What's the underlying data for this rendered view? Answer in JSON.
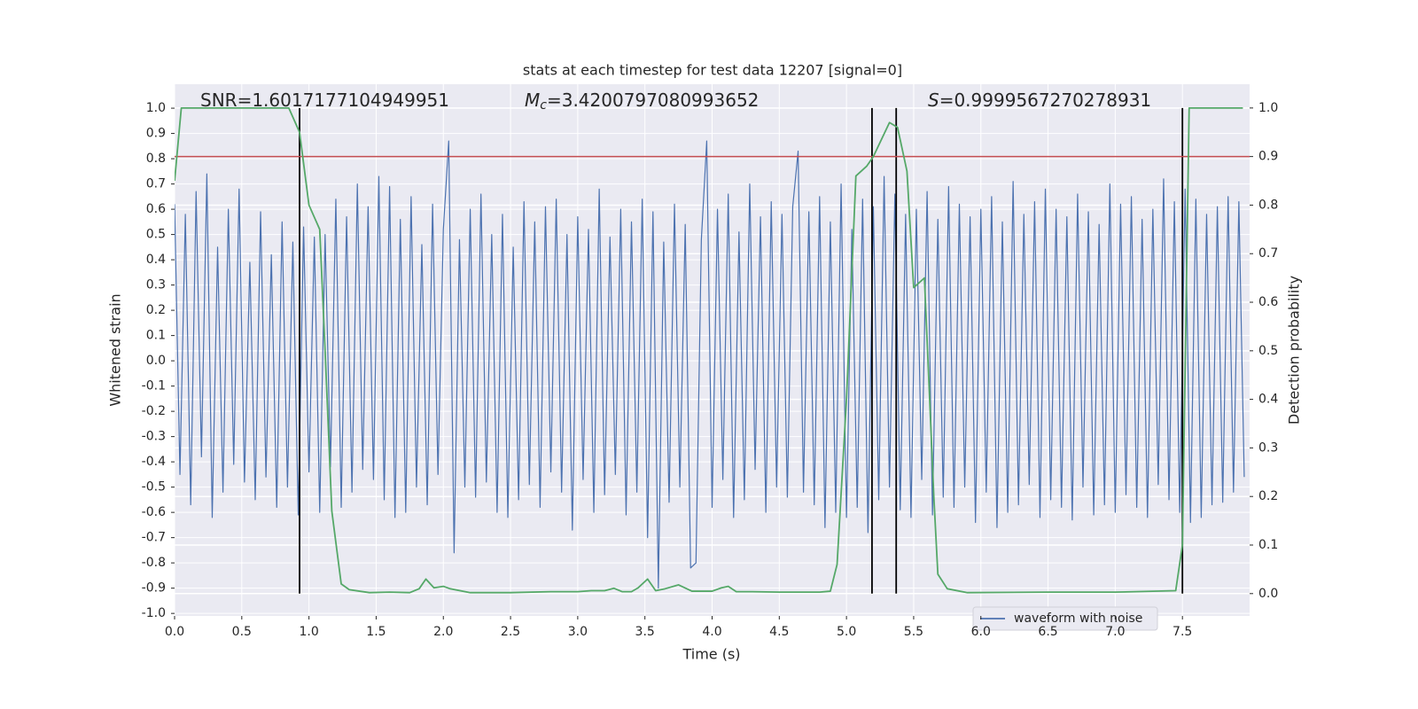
{
  "chart_data": {
    "type": "line",
    "title": "stats at each timestep for test data 12207 [signal=0]",
    "xlabel": "Time (s)",
    "ylabel": "Whitened strain",
    "y2label": "Detection probability",
    "xlim": [
      0,
      8.0
    ],
    "ylim": [
      -1.01,
      1.095
    ],
    "y2lim": [
      -0.046,
      1.049
    ],
    "xticks": [
      {
        "value": 0,
        "label": "0.0"
      },
      0.5,
      {
        "value": 1,
        "label": "1.0"
      },
      1.5,
      {
        "value": 2,
        "label": "2.0"
      },
      2.5,
      {
        "value": 3,
        "label": "3.0"
      },
      3.5,
      {
        "value": 4,
        "label": "4.0"
      },
      4.5,
      {
        "value": 5,
        "label": "5.0"
      },
      5.5,
      {
        "value": 6,
        "label": "6.0"
      },
      6.5,
      {
        "value": 7,
        "label": "7.0"
      },
      7.5
    ],
    "yticks": [
      {
        "value": 1,
        "label": "1.0"
      },
      0.9,
      0.8,
      0.7,
      0.6,
      0.5,
      0.4,
      0.3,
      0.2,
      0.1,
      {
        "value": 0,
        "label": "0.0"
      },
      -0.1,
      -0.2,
      -0.3,
      -0.4,
      -0.5,
      -0.6,
      -0.7,
      -0.8,
      -0.9,
      {
        "value": -1,
        "label": "-1.0"
      }
    ],
    "y2ticks": [
      {
        "value": 1,
        "label": "1.0"
      },
      0.9,
      0.8,
      0.7,
      0.6,
      0.5,
      0.4,
      0.3,
      0.2,
      0.1,
      {
        "value": 0,
        "label": "0.0"
      }
    ],
    "grid": true,
    "legend": "lower right",
    "series": [
      {
        "name": "waveform with noise",
        "color": "#4c72b0",
        "axis": "y",
        "x": [
          0,
          0.04,
          0.08,
          0.12,
          0.16,
          0.2,
          0.24,
          0.28,
          0.32,
          0.36,
          0.4,
          0.44,
          0.48,
          0.52,
          0.56,
          0.6,
          0.64,
          0.68,
          0.72,
          0.76,
          0.8,
          0.84,
          0.88,
          0.92,
          0.96,
          1.0,
          1.04,
          1.08,
          1.12,
          1.16,
          1.2,
          1.24,
          1.28,
          1.32,
          1.36,
          1.4,
          1.44,
          1.48,
          1.52,
          1.56,
          1.6,
          1.64,
          1.68,
          1.72,
          1.76,
          1.8,
          1.84,
          1.88,
          1.92,
          1.96,
          2.0,
          2.04,
          2.08,
          2.12,
          2.16,
          2.2,
          2.24,
          2.28,
          2.32,
          2.36,
          2.4,
          2.44,
          2.48,
          2.52,
          2.56,
          2.6,
          2.64,
          2.68,
          2.72,
          2.76,
          2.8,
          2.84,
          2.88,
          2.92,
          2.96,
          3.0,
          3.04,
          3.08,
          3.12,
          3.16,
          3.2,
          3.24,
          3.28,
          3.32,
          3.36,
          3.4,
          3.44,
          3.48,
          3.52,
          3.56,
          3.6,
          3.64,
          3.68,
          3.72,
          3.76,
          3.8,
          3.84,
          3.88,
          3.92,
          3.96,
          4.0,
          4.04,
          4.08,
          4.12,
          4.16,
          4.2,
          4.24,
          4.28,
          4.32,
          4.36,
          4.4,
          4.44,
          4.48,
          4.52,
          4.56,
          4.6,
          4.64,
          4.68,
          4.72,
          4.76,
          4.8,
          4.84,
          4.88,
          4.92,
          4.96,
          5.0,
          5.04,
          5.08,
          5.12,
          5.16,
          5.2,
          5.24,
          5.28,
          5.32,
          5.36,
          5.4,
          5.44,
          5.48,
          5.52,
          5.56,
          5.6,
          5.64,
          5.68,
          5.72,
          5.76,
          5.8,
          5.84,
          5.88,
          5.92,
          5.96,
          6.0,
          6.04,
          6.08,
          6.12,
          6.16,
          6.2,
          6.24,
          6.28,
          6.32,
          6.36,
          6.4,
          6.44,
          6.48,
          6.52,
          6.56,
          6.6,
          6.64,
          6.68,
          6.72,
          6.76,
          6.8,
          6.84,
          6.88,
          6.92,
          6.96,
          7.0,
          7.04,
          7.08,
          7.12,
          7.16,
          7.2,
          7.24,
          7.28,
          7.32,
          7.36,
          7.4,
          7.44,
          7.48,
          7.52,
          7.56,
          7.6,
          7.64,
          7.68,
          7.72,
          7.76,
          7.8,
          7.84,
          7.88,
          7.92,
          7.96
        ],
        "values": [
          0.62,
          -0.45,
          0.58,
          -0.57,
          0.67,
          -0.38,
          0.74,
          -0.62,
          0.45,
          -0.52,
          0.6,
          -0.41,
          0.68,
          -0.48,
          0.39,
          -0.55,
          0.59,
          -0.46,
          0.42,
          -0.58,
          0.55,
          -0.5,
          0.47,
          -0.61,
          0.53,
          -0.44,
          0.49,
          -0.6,
          0.5,
          -0.42,
          0.64,
          -0.58,
          0.57,
          -0.52,
          0.7,
          -0.43,
          0.61,
          -0.47,
          0.73,
          -0.55,
          0.69,
          -0.62,
          0.56,
          -0.6,
          0.65,
          -0.5,
          0.46,
          -0.57,
          0.62,
          -0.45,
          0.52,
          0.87,
          -0.76,
          0.48,
          -0.5,
          0.6,
          -0.54,
          0.66,
          -0.48,
          0.5,
          -0.6,
          0.58,
          -0.62,
          0.45,
          -0.55,
          0.63,
          -0.49,
          0.55,
          -0.58,
          0.61,
          -0.44,
          0.64,
          -0.52,
          0.5,
          -0.67,
          0.57,
          -0.47,
          0.52,
          -0.6,
          0.68,
          -0.53,
          0.49,
          -0.45,
          0.6,
          -0.61,
          0.55,
          -0.52,
          0.64,
          -0.7,
          0.59,
          -0.9,
          0.47,
          -0.56,
          0.62,
          -0.5,
          0.54,
          -0.82,
          -0.8,
          0.48,
          0.87,
          -0.58,
          0.6,
          -0.47,
          0.66,
          -0.62,
          0.51,
          -0.55,
          0.7,
          -0.43,
          0.57,
          -0.6,
          0.63,
          -0.5,
          0.58,
          -0.54,
          0.61,
          0.83,
          -0.52,
          0.59,
          -0.57,
          0.65,
          -0.66,
          0.55,
          -0.6,
          0.7,
          -0.62,
          0.52,
          -0.58,
          0.64,
          -0.68,
          0.61,
          -0.55,
          0.73,
          -0.5,
          0.66,
          -0.59,
          0.58,
          -0.62,
          0.6,
          -0.47,
          0.67,
          -0.61,
          0.56,
          -0.54,
          0.69,
          -0.58,
          0.62,
          -0.5,
          0.57,
          -0.64,
          0.6,
          -0.52,
          0.65,
          -0.66,
          0.55,
          -0.6,
          0.71,
          -0.57,
          0.58,
          -0.49,
          0.63,
          -0.62,
          0.68,
          -0.55,
          0.6,
          -0.58,
          0.57,
          -0.63,
          0.66,
          -0.5,
          0.59,
          -0.61,
          0.54,
          -0.57,
          0.7,
          -0.6,
          0.62,
          -0.53,
          0.65,
          -0.58,
          0.56,
          -0.62,
          0.6,
          -0.49,
          0.72,
          -0.55,
          0.63,
          -0.6,
          0.68,
          -0.64,
          0.64,
          -0.62,
          0.58,
          -0.57,
          0.61,
          -0.56,
          0.65,
          -0.52,
          0.63,
          -0.46
        ]
      },
      {
        "color": "#55a868",
        "axis": "y2",
        "x": [
          0,
          0.05,
          0.1,
          0.5,
          0.85,
          0.93,
          1.0,
          1.08,
          1.12,
          1.17,
          1.24,
          1.3,
          1.45,
          1.6,
          1.75,
          1.82,
          1.87,
          1.93,
          2.0,
          2.05,
          2.2,
          2.5,
          2.8,
          3.0,
          3.1,
          3.2,
          3.27,
          3.33,
          3.4,
          3.45,
          3.52,
          3.58,
          3.65,
          3.75,
          3.85,
          4.0,
          4.07,
          4.12,
          4.18,
          4.3,
          4.5,
          4.8,
          4.88,
          4.93,
          5.0,
          5.07,
          5.15,
          5.2,
          5.32,
          5.38,
          5.45,
          5.5,
          5.58,
          5.65,
          5.68,
          5.75,
          5.9,
          6.5,
          7.0,
          7.45,
          7.5,
          7.55,
          7.6,
          7.95
        ],
        "values": [
          0.85,
          1,
          1,
          1,
          1,
          0.95,
          0.8,
          0.75,
          0.5,
          0.17,
          0.02,
          0.008,
          0.002,
          0.003,
          0.002,
          0.01,
          0.03,
          0.012,
          0.015,
          0.01,
          0.002,
          0.002,
          0.004,
          0.004,
          0.006,
          0.006,
          0.011,
          0.004,
          0.004,
          0.012,
          0.03,
          0.006,
          0.01,
          0.018,
          0.005,
          0.005,
          0.012,
          0.015,
          0.004,
          0.004,
          0.003,
          0.003,
          0.005,
          0.06,
          0.4,
          0.86,
          0.88,
          0.9,
          0.97,
          0.96,
          0.87,
          0.63,
          0.65,
          0.2,
          0.04,
          0.01,
          0.002,
          0.003,
          0.003,
          0.006,
          0.1,
          1,
          1,
          1
        ]
      }
    ],
    "threshold": {
      "value": 0.9,
      "axis": "y2",
      "color": "#c44e52"
    },
    "vlines": {
      "x": [
        0.93,
        5.19,
        5.37,
        7.5
      ],
      "ymin": 0,
      "ymax": 1,
      "axis": "y2",
      "color": "#000000"
    },
    "annotations": [
      {
        "symbol": "SNR",
        "text": "=1.6017177104949951"
      },
      {
        "symbol": "M",
        "italic": true,
        "subscript": "c",
        "text": "=3.4200797080993652"
      },
      {
        "symbol": "S",
        "italic": true,
        "text": "=0.9999567270278931"
      }
    ]
  }
}
